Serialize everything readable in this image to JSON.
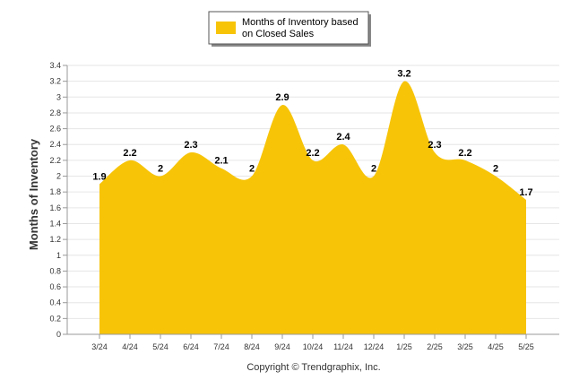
{
  "chart_data": {
    "type": "area",
    "categories": [
      "3/24",
      "4/24",
      "5/24",
      "6/24",
      "7/24",
      "8/24",
      "9/24",
      "10/24",
      "11/24",
      "12/24",
      "1/25",
      "2/25",
      "3/25",
      "4/25",
      "5/25"
    ],
    "series": [
      {
        "name": "Months of Inventory based on Closed Sales",
        "values": [
          1.9,
          2.2,
          2,
          2.3,
          2.1,
          2,
          2.9,
          2.2,
          2.4,
          2,
          3.2,
          2.3,
          2.2,
          2,
          1.7
        ],
        "labels": [
          "1.9",
          "2.2",
          "2",
          "2.3",
          "2.1",
          "2",
          "2.9",
          "2.2",
          "2.4",
          "2",
          "3.2",
          "2.3",
          "2.2",
          "2",
          "1.7"
        ],
        "color": "#F7C408"
      }
    ],
    "ylabel": "Months of Inventory",
    "xlabel": "",
    "ylim": [
      0,
      3.4
    ],
    "yticks": [
      "0",
      "0.2",
      "0.4",
      "0.6",
      "0.8",
      "1",
      "1.2",
      "1.4",
      "1.6",
      "1.8",
      "2",
      "2.2",
      "2.4",
      "2.6",
      "2.8",
      "3",
      "3.2",
      "3.4"
    ],
    "grid": true,
    "legend_position": "top-center",
    "legend_lines": [
      "Months of Inventory based",
      "on Closed Sales"
    ]
  },
  "footer": {
    "copyright": "Copyright © Trendgraphix, Inc."
  }
}
